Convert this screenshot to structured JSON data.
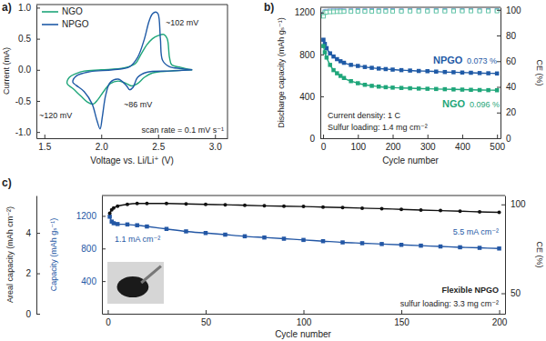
{
  "chart_data": [
    {
      "type": "line",
      "title": "a)",
      "xlabel": "Voltage vs. Li/Li⁺ (V)",
      "ylabel": "Current (mA)",
      "xlim": [
        1.43,
        3.11
      ],
      "xticks": [
        1.5,
        {
          "value": 2,
          "label": "2.0"
        },
        2.5,
        {
          "value": 3,
          "label": "3.0"
        }
      ],
      "ylim": [
        -1.1,
        1.05
      ],
      "yticks": [
        {
          "value": -1,
          "label": "-1.0"
        },
        -0.5,
        {
          "value": 0,
          "label": "0.0"
        },
        0.5,
        {
          "value": 1,
          "label": "1.0"
        }
      ],
      "legend": "upper left",
      "series": [
        {
          "name": "NGO",
          "color": "#1fa67a",
          "line_style": "solid",
          "x": [
            2.8,
            2.6,
            2.45,
            2.38,
            2.32,
            2.27,
            2.22,
            2.15,
            2.08,
            2.02,
            1.97,
            1.93,
            1.88,
            1.82,
            1.75,
            1.7,
            1.72,
            1.78,
            1.85,
            2.0,
            2.2,
            2.3,
            2.35,
            2.4,
            2.45,
            2.5,
            2.55,
            2.58,
            2.6,
            2.62,
            2.7,
            2.8
          ],
          "values": [
            0.0,
            -0.02,
            -0.05,
            -0.12,
            -0.22,
            -0.26,
            -0.22,
            -0.18,
            -0.22,
            -0.35,
            -0.48,
            -0.55,
            -0.52,
            -0.42,
            -0.3,
            -0.22,
            -0.12,
            -0.06,
            -0.02,
            0.0,
            0.03,
            0.1,
            0.25,
            0.4,
            0.5,
            0.55,
            0.57,
            0.5,
            0.2,
            0.08,
            0.04,
            0.0
          ]
        },
        {
          "name": "NPGO",
          "color": "#1f5aa6",
          "line_style": "solid",
          "x": [
            2.8,
            2.6,
            2.4,
            2.32,
            2.28,
            2.25,
            2.22,
            2.15,
            2.08,
            2.04,
            2.01,
            1.99,
            1.96,
            1.92,
            1.85,
            1.78,
            1.75,
            1.78,
            1.9,
            2.1,
            2.25,
            2.32,
            2.38,
            2.42,
            2.45,
            2.48,
            2.5,
            2.52,
            2.54,
            2.6,
            2.7,
            2.8
          ],
          "values": [
            0.0,
            -0.02,
            -0.04,
            -0.12,
            -0.28,
            -0.32,
            -0.25,
            -0.15,
            -0.2,
            -0.4,
            -0.75,
            -0.95,
            -0.8,
            -0.55,
            -0.35,
            -0.25,
            -0.2,
            -0.1,
            -0.03,
            0.0,
            0.05,
            0.2,
            0.5,
            0.78,
            0.9,
            0.93,
            0.9,
            0.5,
            0.15,
            0.05,
            0.02,
            0.0
          ]
        }
      ],
      "annotations": [
        "~120 mV",
        "~86 mV",
        "~102 mV",
        "scan rate = 0.1 mV s⁻¹"
      ]
    },
    {
      "type": "line",
      "title": "b)",
      "xlabel": "Cycle number",
      "ylabel": "Discharge capacity (mAh gₛ⁻¹)",
      "y2label": "CE (%)",
      "xlim": [
        -8,
        510
      ],
      "xticks": [
        0,
        100,
        200,
        300,
        400,
        500
      ],
      "ylim": [
        0,
        1250
      ],
      "yticks": [
        0,
        400,
        800,
        1200
      ],
      "y2lim": [
        0,
        102
      ],
      "y2ticks": [
        0,
        20,
        40,
        60,
        80,
        100
      ],
      "x": [
        1,
        5,
        10,
        20,
        30,
        40,
        50,
        60,
        80,
        100,
        120,
        140,
        160,
        180,
        200,
        225,
        250,
        275,
        300,
        325,
        350,
        375,
        400,
        425,
        450,
        475,
        500
      ],
      "series": [
        {
          "name": "NPGO",
          "color": "#1f5aa6",
          "marker": "square",
          "line_style": "solid",
          "values": [
            940,
            900,
            860,
            810,
            780,
            755,
            735,
            720,
            700,
            690,
            680,
            672,
            665,
            660,
            655,
            650,
            646,
            642,
            640,
            636,
            632,
            630,
            627,
            625,
            622,
            620,
            618
          ]
        },
        {
          "name": "NGO",
          "color": "#1fa67a",
          "marker": "square",
          "line_style": "solid",
          "values": [
            880,
            820,
            770,
            700,
            650,
            620,
            595,
            575,
            545,
            525,
            510,
            500,
            493,
            487,
            483,
            480,
            477,
            474,
            472,
            470,
            468,
            466,
            464,
            462,
            460,
            459,
            458
          ]
        },
        {
          "color": "#6f9fd8",
          "marker": "open-square",
          "line_style": "none",
          "axis": "y2",
          "values": [
            96.5,
            98.6,
            99.0,
            99.2,
            99.3,
            99.3,
            99.4,
            99.3,
            99.4,
            99.5,
            99.4,
            99.5,
            99.4,
            99.5,
            99.5,
            99.4,
            99.5,
            99.5,
            99.4,
            99.5,
            99.5,
            99.4,
            99.5,
            99.5,
            99.4,
            99.5,
            99.5
          ]
        },
        {
          "color": "#5cc4a2",
          "marker": "open-square",
          "line_style": "none",
          "axis": "y2",
          "values": [
            95.0,
            97.8,
            98.2,
            98.4,
            98.5,
            98.6,
            98.6,
            98.7,
            98.7,
            98.8,
            98.8,
            98.8,
            98.9,
            98.9,
            98.9,
            98.9,
            99.0,
            99.0,
            99.0,
            99.0,
            99.0,
            99.1,
            99.1,
            99.1,
            99.1,
            99.1,
            99.1
          ]
        }
      ],
      "annotations": [
        "0.073 %",
        "0.096 %",
        "Current density: 1 C",
        "Sulfur loading: 1.4 mg cm⁻²"
      ]
    },
    {
      "type": "line",
      "title": "c)",
      "xlabel": "Cycle number",
      "ylabel": "Capacity (mAh gₛ⁻¹)",
      "y2label": "CE (%)",
      "y3label": "Areal capacity (mAh cm⁻²)",
      "xlim": [
        -3,
        203
      ],
      "xticks": [
        0,
        50,
        100,
        150,
        200
      ],
      "ylim": [
        0,
        1450
      ],
      "yticks": [
        400,
        800,
        1200
      ],
      "y2lim": [
        38.5,
        105
      ],
      "y2ticks": [
        50,
        100
      ],
      "y3lim": [
        0,
        5.85
      ],
      "y3ticks": [
        0,
        2,
        4
      ],
      "x": [
        1,
        2,
        3,
        5,
        10,
        15,
        20,
        30,
        40,
        50,
        60,
        70,
        80,
        90,
        100,
        110,
        120,
        130,
        140,
        150,
        160,
        170,
        180,
        190,
        200
      ],
      "series": [
        {
          "color": "#2357a5",
          "marker": "square",
          "line_style": "solid",
          "values": [
            1190,
            1130,
            1110,
            1100,
            1095,
            1085,
            1070,
            1040,
            1010,
            990,
            970,
            950,
            935,
            920,
            905,
            890,
            875,
            865,
            855,
            845,
            835,
            825,
            815,
            808,
            800
          ]
        },
        {
          "color": "#111111",
          "marker": "circle",
          "line_style": "solid",
          "axis": "y2",
          "values": [
            95.0,
            97.0,
            98.0,
            99.0,
            100.0,
            100.5,
            100.5,
            100.5,
            100.3,
            100.0,
            99.8,
            99.5,
            99.2,
            99.0,
            98.8,
            98.5,
            98.2,
            97.9,
            97.6,
            97.2,
            96.8,
            96.5,
            96.2,
            95.8,
            95.5
          ]
        }
      ],
      "annotations": [
        "1.1 mA cm⁻²",
        "5.5 mA cm⁻²",
        "Flexible NPGO",
        "sulfur loading: 3.3 mg cm⁻²"
      ]
    }
  ]
}
